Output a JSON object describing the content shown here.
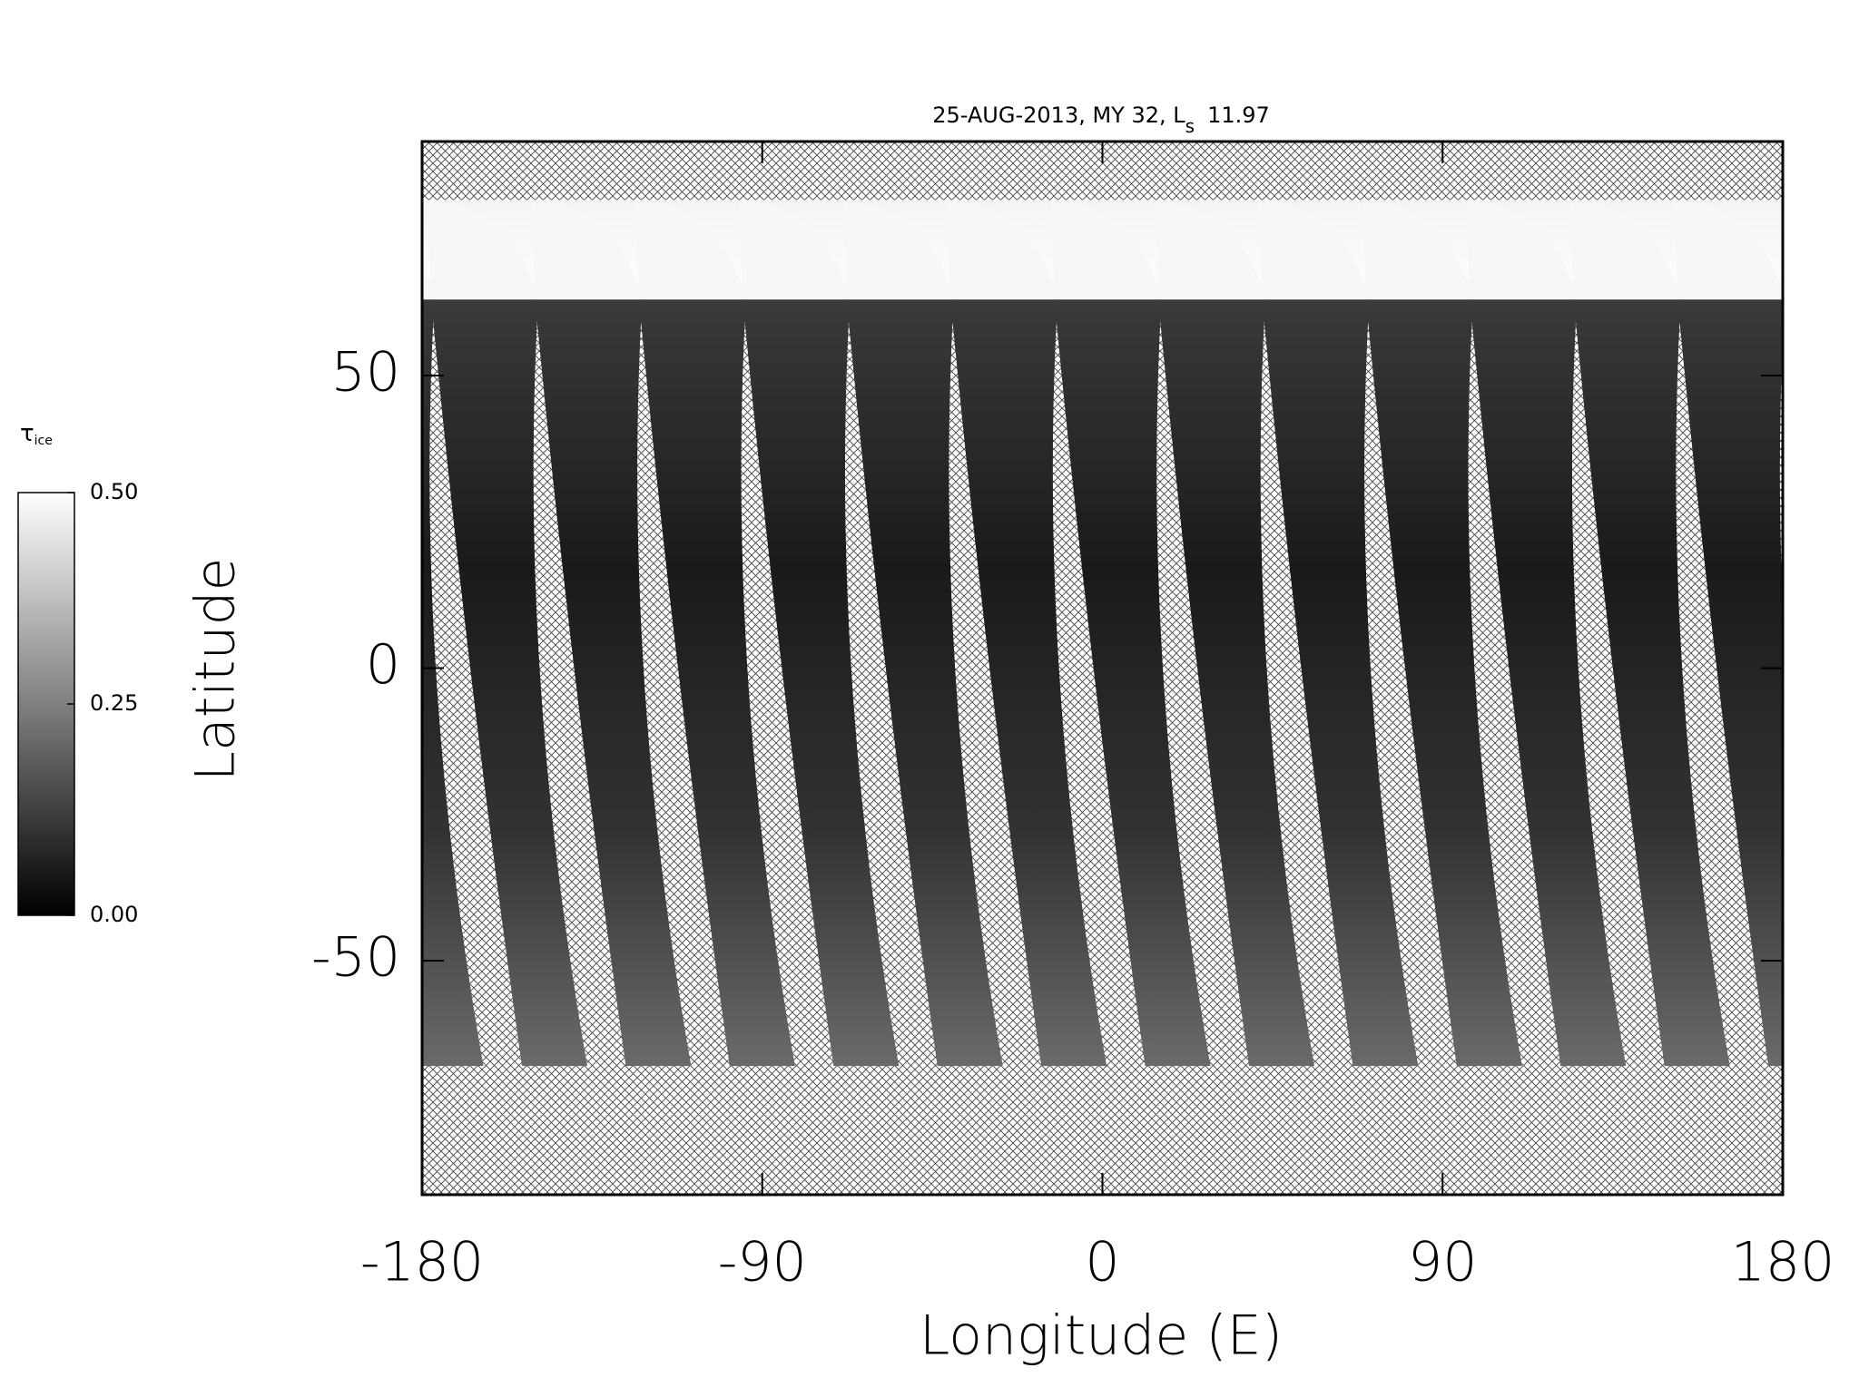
{
  "chart_data": {
    "type": "map",
    "title": "25-AUG-2013, MY 32,  L",
    "title_subscript": "s",
    "title_value": "11.97",
    "x_label": "Longitude (E)",
    "y_label": "Latitude",
    "xlim": [
      -180,
      180
    ],
    "xticks": [
      -180,
      -90,
      0,
      90,
      180
    ],
    "ylim": [
      -90,
      90
    ],
    "yticks": [
      -50,
      0,
      50
    ],
    "colorbar": {
      "label": "τ",
      "label_subscript": "ice",
      "lim": [
        0,
        0.5
      ],
      "ticks": [
        {
          "value": 0,
          "label": "0.00"
        },
        {
          "value": 0.25,
          "label": "0.25"
        },
        {
          "value": 0.5,
          "label": "0.50"
        }
      ],
      "colors": [
        "#000000",
        "#ffffff"
      ]
    }
  }
}
